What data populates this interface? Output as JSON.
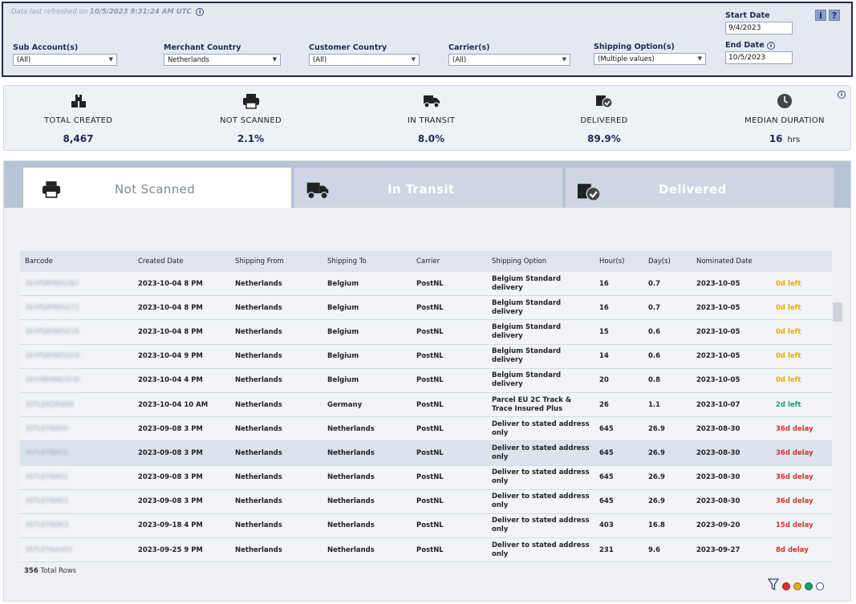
{
  "filters": {
    "refresh_prefix": "Data last refreshed on",
    "refresh_time": "10/5/2023 9:31:24 AM UTC",
    "sub_account": {
      "label": "Sub Account(s)",
      "value": "(All)"
    },
    "merchant_country": {
      "label": "Merchant Country",
      "value": "Netherlands"
    },
    "customer_country": {
      "label": "Customer Country",
      "value": "(All)"
    },
    "carrier": {
      "label": "Carrier(s)",
      "value": "(All)"
    },
    "shipping_option": {
      "label": "Shipping Option(s)",
      "value": "(Multiple values)"
    },
    "start_date": {
      "label": "Start Date",
      "value": "9/4/2023"
    },
    "end_date": {
      "label": "End Date",
      "value": "10/5/2023"
    },
    "info_glyph": "i",
    "help_glyph": "?"
  },
  "kpis": [
    {
      "label": "TOTAL CREATED",
      "value": "8,467",
      "icon": "boxes-icon"
    },
    {
      "label": "NOT SCANNED",
      "value": "2.1%",
      "icon": "printer-icon"
    },
    {
      "label": "IN TRANSIT",
      "value": "8.0%",
      "icon": "truck-icon"
    },
    {
      "label": "DELIVERED",
      "value": "89.9%",
      "icon": "delivered-box-icon"
    },
    {
      "label": "MEDIAN DURATION",
      "value": "16",
      "unit": "hrs",
      "icon": "clock-icon"
    }
  ],
  "tabs": [
    {
      "label": "Not Scanned",
      "icon": "printer-icon"
    },
    {
      "label": "In Transit",
      "icon": "truck-icon"
    },
    {
      "label": "Delivered",
      "icon": "delivered-box-icon"
    }
  ],
  "table": {
    "columns": [
      "Barcode",
      "Created Date",
      "Shipping From",
      "Shipping To",
      "Carrier",
      "Shipping Option",
      "Hour(s)",
      "Day(s)",
      "Nominated Date",
      ""
    ],
    "rows": [
      {
        "barcode": "3SYPDRNNS367",
        "created": "2023-10-04 8 PM",
        "from": "Netherlands",
        "to": "Belgium",
        "carrier": "PostNL",
        "option": "Belgium Standard delivery",
        "hours": "16",
        "days": "0.7",
        "nominated": "2023-10-05",
        "status": "0d left",
        "status_color": "yellow"
      },
      {
        "barcode": "3SYPDRNNS271",
        "created": "2023-10-04 8 PM",
        "from": "Netherlands",
        "to": "Belgium",
        "carrier": "PostNL",
        "option": "Belgium Standard delivery",
        "hours": "16",
        "days": "0.7",
        "nominated": "2023-10-05",
        "status": "0d left",
        "status_color": "yellow"
      },
      {
        "barcode": "3SYPDRNNS035",
        "created": "2023-10-04 8 PM",
        "from": "Netherlands",
        "to": "Belgium",
        "carrier": "PostNL",
        "option": "Belgium Standard delivery",
        "hours": "15",
        "days": "0.6",
        "nominated": "2023-10-05",
        "status": "0d left",
        "status_color": "yellow"
      },
      {
        "barcode": "3SYPDRNNS419",
        "created": "2023-10-04 9 PM",
        "from": "Netherlands",
        "to": "Belgium",
        "carrier": "PostNL",
        "option": "Belgium Standard delivery",
        "hours": "14",
        "days": "0.6",
        "nominated": "2023-10-05",
        "status": "0d left",
        "status_color": "yellow"
      },
      {
        "barcode": "3SYHBHNN3036",
        "created": "2023-10-04 4 PM",
        "from": "Netherlands",
        "to": "Belgium",
        "carrier": "PostNL",
        "option": "Belgium Standard delivery",
        "hours": "20",
        "days": "0.8",
        "nominated": "2023-10-05",
        "status": "0d left",
        "status_color": "yellow"
      },
      {
        "barcode": "3STLEKDRN98",
        "created": "2023-10-04 10 AM",
        "from": "Netherlands",
        "to": "Germany",
        "carrier": "PostNL",
        "option": "Parcel EU 2C Track & Trace Insured Plus",
        "hours": "26",
        "days": "1.1",
        "nominated": "2023-10-07",
        "status": "2d left",
        "status_color": "green"
      },
      {
        "barcode": "3STLEYN900",
        "created": "2023-09-08 3 PM",
        "from": "Netherlands",
        "to": "Netherlands",
        "carrier": "PostNL",
        "option": "Deliver to stated address only",
        "hours": "645",
        "days": "26.9",
        "nominated": "2023-08-30",
        "status": "36d delay",
        "status_color": "red"
      },
      {
        "barcode": "3STLEYN901",
        "created": "2023-09-08 3 PM",
        "from": "Netherlands",
        "to": "Netherlands",
        "carrier": "PostNL",
        "option": "Deliver to stated address only",
        "hours": "645",
        "days": "26.9",
        "nominated": "2023-08-30",
        "status": "36d delay",
        "status_color": "red",
        "highlight": true
      },
      {
        "barcode": "3STLEYN902",
        "created": "2023-09-08 3 PM",
        "from": "Netherlands",
        "to": "Netherlands",
        "carrier": "PostNL",
        "option": "Deliver to stated address only",
        "hours": "645",
        "days": "26.9",
        "nominated": "2023-08-30",
        "status": "36d delay",
        "status_color": "red"
      },
      {
        "barcode": "3STLEYN903",
        "created": "2023-09-08 3 PM",
        "from": "Netherlands",
        "to": "Netherlands",
        "carrier": "PostNL",
        "option": "Deliver to stated address only",
        "hours": "645",
        "days": "26.9",
        "nominated": "2023-08-30",
        "status": "36d delay",
        "status_color": "red"
      },
      {
        "barcode": "3STLEYN9R3",
        "created": "2023-09-18 4 PM",
        "from": "Netherlands",
        "to": "Netherlands",
        "carrier": "PostNL",
        "option": "Deliver to stated address only",
        "hours": "403",
        "days": "16.8",
        "nominated": "2023-09-20",
        "status": "15d delay",
        "status_color": "red"
      },
      {
        "barcode": "3STLEYN4401",
        "created": "2023-09-25 9 PM",
        "from": "Netherlands",
        "to": "Netherlands",
        "carrier": "PostNL",
        "option": "Deliver to stated address only",
        "hours": "231",
        "days": "9.6",
        "nominated": "2023-09-27",
        "status": "8d delay",
        "status_color": "red"
      }
    ],
    "total_count": "356",
    "total_suffix": "Total Rows"
  },
  "legend": {
    "filter_icon": "funnel-icon",
    "colors": [
      "#d9322b",
      "#e2ad18",
      "#1a9e6c",
      "#ffffff"
    ]
  }
}
